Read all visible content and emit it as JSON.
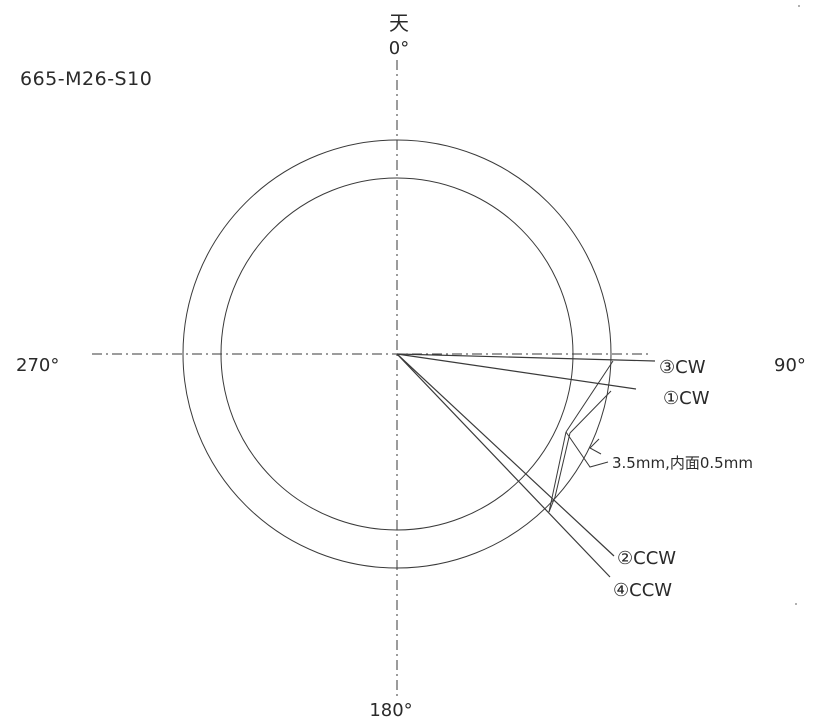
{
  "part_number": "665-M26-S10",
  "top_marker": "天",
  "angles": {
    "top": "0°",
    "right": "90°",
    "bottom": "180°",
    "left": "270°"
  },
  "markers": [
    {
      "label": "③CW",
      "angle_deg": 87
    },
    {
      "label": "①CW",
      "angle_deg": 82
    },
    {
      "label": "②CCW",
      "angle_deg": 132
    },
    {
      "label": "④CCW",
      "angle_deg": 136
    }
  ],
  "dimension_note": "3.5mm,内面0.5mm"
}
